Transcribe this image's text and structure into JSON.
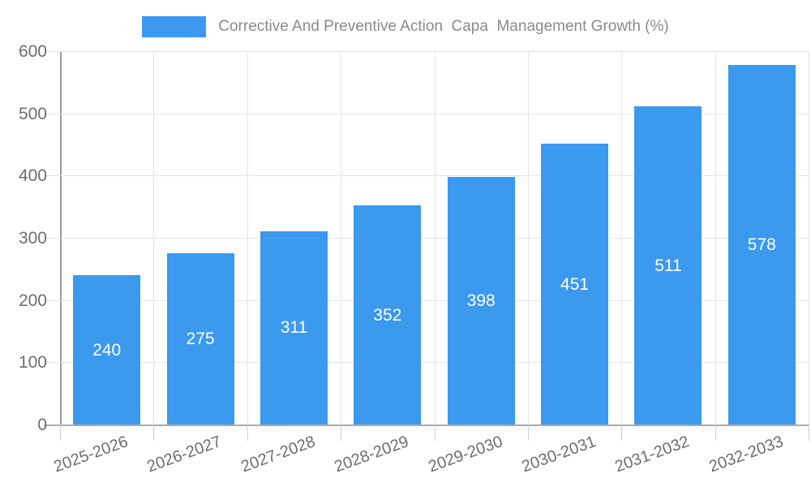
{
  "chart_data": {
    "type": "bar",
    "title": "Corrective And Preventive Action  Capa  Management Growth (%)",
    "categories": [
      "2025-2026",
      "2026-2027",
      "2027-2028",
      "2028-2029",
      "2029-2030",
      "2030-2031",
      "2031-2032",
      "2032-2033"
    ],
    "values": [
      240,
      275,
      311,
      352,
      398,
      451,
      511,
      578
    ],
    "xlabel": "",
    "ylabel": "",
    "ylim": [
      0,
      600
    ],
    "ytick_step": 100,
    "grid": true,
    "legend_position": "top",
    "bar_color": "#3b99ee",
    "value_label_color": "#ffffff",
    "gridline_color": "#e5e5e5",
    "axis_color": "#9a9a9a",
    "tick_label_color": "#6e6e6e",
    "title_color": "#8a8a8a"
  }
}
